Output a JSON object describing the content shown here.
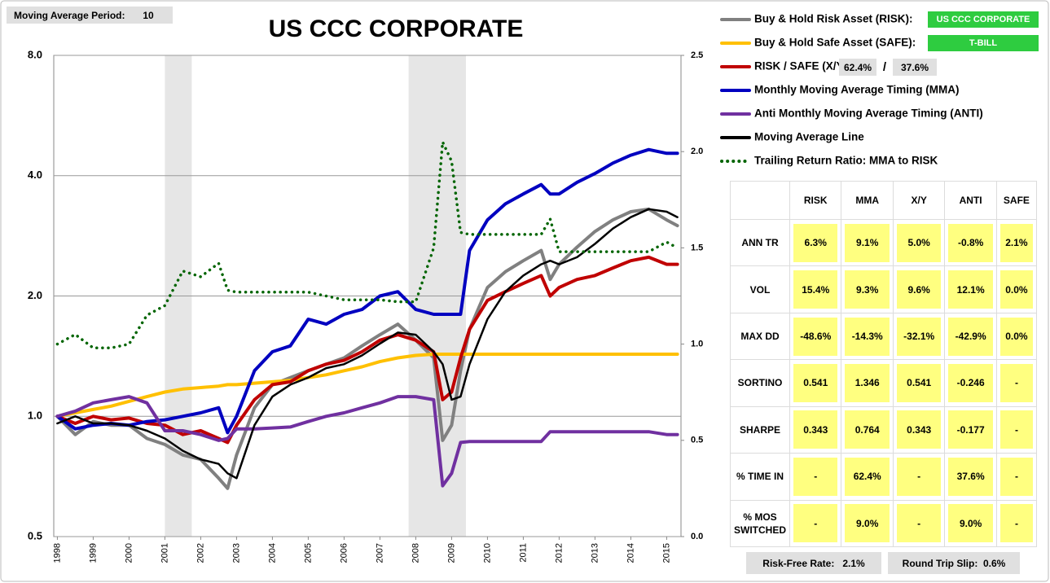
{
  "moving_average": {
    "label": "Moving Average Period:",
    "value": 10
  },
  "risk_asset": "US CCC CORPORATE",
  "safe_asset": "T-BILL",
  "allocation": {
    "risk": "62.4%",
    "separator": "/",
    "safe": "37.6%"
  },
  "chart_data": {
    "type": "line",
    "title": "US CCC CORPORATE",
    "x": [
      1998.0,
      1998.5,
      1999.0,
      1999.5,
      2000.0,
      2000.5,
      2001.0,
      2001.5,
      2002.0,
      2002.5,
      2002.75,
      2003.0,
      2003.5,
      2004.0,
      2004.5,
      2005.0,
      2005.5,
      2006.0,
      2006.5,
      2007.0,
      2007.5,
      2008.0,
      2008.5,
      2008.75,
      2009.0,
      2009.25,
      2009.5,
      2010.0,
      2010.5,
      2011.0,
      2011.5,
      2011.75,
      2012.0,
      2012.5,
      2013.0,
      2013.5,
      2014.0,
      2014.5,
      2015.0,
      2015.3
    ],
    "series": [
      {
        "name": "Buy & Hold Risk Asset (RISK):",
        "color": "#808080",
        "values": [
          1.0,
          0.9,
          0.97,
          0.95,
          0.95,
          0.88,
          0.85,
          0.8,
          0.78,
          0.7,
          0.66,
          0.8,
          1.05,
          1.2,
          1.25,
          1.3,
          1.35,
          1.4,
          1.5,
          1.6,
          1.7,
          1.55,
          1.4,
          0.87,
          0.95,
          1.3,
          1.65,
          2.1,
          2.3,
          2.45,
          2.6,
          2.2,
          2.4,
          2.65,
          2.9,
          3.1,
          3.25,
          3.3,
          3.1,
          3.0
        ]
      },
      {
        "name": "Buy & Hold Safe Asset (SAFE):",
        "color": "#ffc000",
        "values": [
          1.0,
          1.02,
          1.04,
          1.06,
          1.09,
          1.12,
          1.15,
          1.17,
          1.18,
          1.19,
          1.2,
          1.2,
          1.21,
          1.22,
          1.23,
          1.25,
          1.27,
          1.3,
          1.33,
          1.37,
          1.4,
          1.42,
          1.43,
          1.43,
          1.43,
          1.43,
          1.43,
          1.43,
          1.43,
          1.43,
          1.43,
          1.43,
          1.43,
          1.43,
          1.43,
          1.43,
          1.43,
          1.43,
          1.43,
          1.43
        ]
      },
      {
        "name": "RISK / SAFE (X/Y):",
        "color": "#c00000",
        "values": [
          1.0,
          0.96,
          1.0,
          0.98,
          0.99,
          0.96,
          0.95,
          0.9,
          0.92,
          0.88,
          0.86,
          0.95,
          1.1,
          1.2,
          1.22,
          1.3,
          1.35,
          1.38,
          1.45,
          1.55,
          1.6,
          1.55,
          1.45,
          1.1,
          1.15,
          1.4,
          1.65,
          1.95,
          2.05,
          2.15,
          2.25,
          2.0,
          2.1,
          2.2,
          2.25,
          2.35,
          2.45,
          2.5,
          2.4,
          2.4
        ]
      },
      {
        "name": "Monthly Moving Average Timing (MMA)",
        "color": "#0000c0",
        "values": [
          1.0,
          0.93,
          0.95,
          0.96,
          0.95,
          0.97,
          0.98,
          1.0,
          1.02,
          1.05,
          0.91,
          1.0,
          1.3,
          1.45,
          1.5,
          1.75,
          1.7,
          1.8,
          1.85,
          2.0,
          2.05,
          1.85,
          1.8,
          1.8,
          1.8,
          1.8,
          2.6,
          3.1,
          3.4,
          3.6,
          3.8,
          3.6,
          3.6,
          3.85,
          4.05,
          4.3,
          4.5,
          4.65,
          4.55,
          4.55
        ]
      },
      {
        "name": "Anti Monthly Moving Average Timing (ANTI)",
        "color": "#7030a0",
        "values": [
          1.0,
          1.03,
          1.08,
          1.1,
          1.12,
          1.08,
          0.92,
          0.92,
          0.9,
          0.87,
          0.88,
          0.93,
          0.93,
          0.935,
          0.94,
          0.97,
          1.0,
          1.02,
          1.05,
          1.08,
          1.12,
          1.12,
          1.1,
          0.67,
          0.72,
          0.86,
          0.865,
          0.865,
          0.865,
          0.865,
          0.865,
          0.915,
          0.915,
          0.915,
          0.915,
          0.915,
          0.915,
          0.915,
          0.9,
          0.9
        ]
      },
      {
        "name": "Moving Average Line",
        "color": "#000000",
        "values": [
          0.96,
          1.0,
          0.96,
          0.96,
          0.95,
          0.92,
          0.88,
          0.82,
          0.78,
          0.76,
          0.72,
          0.7,
          0.95,
          1.12,
          1.2,
          1.25,
          1.32,
          1.35,
          1.42,
          1.52,
          1.62,
          1.6,
          1.45,
          1.35,
          1.1,
          1.12,
          1.35,
          1.75,
          2.05,
          2.25,
          2.4,
          2.45,
          2.4,
          2.5,
          2.7,
          2.95,
          3.15,
          3.3,
          3.25,
          3.15
        ]
      },
      {
        "name": "Trailing Return Ratio: MMA to RISK",
        "color": "#006400",
        "style": "dotted",
        "axis": "y2",
        "values": [
          1.0,
          1.05,
          0.98,
          0.98,
          1.0,
          1.15,
          1.2,
          1.38,
          1.35,
          1.42,
          1.28,
          1.27,
          1.27,
          1.27,
          1.27,
          1.27,
          1.25,
          1.23,
          1.23,
          1.23,
          1.22,
          1.22,
          1.5,
          2.05,
          1.95,
          1.58,
          1.57,
          1.57,
          1.57,
          1.57,
          1.57,
          1.65,
          1.48,
          1.48,
          1.48,
          1.48,
          1.48,
          1.48,
          1.53,
          1.5
        ]
      }
    ],
    "shaded_periods": [
      [
        2001.0,
        2001.75
      ],
      [
        2007.8,
        2009.4
      ]
    ],
    "xlim": [
      1997.9,
      2015.4
    ],
    "xticks": [
      1998,
      1999,
      2000,
      2001,
      2002,
      2003,
      2004,
      2005,
      2006,
      2007,
      2008,
      2009,
      2010,
      2011,
      2012,
      2013,
      2014,
      2015
    ],
    "ylim": [
      0.5,
      8
    ],
    "ylog": true,
    "yticks": [
      0.5,
      {
        "value": 1,
        "label": "1.0"
      },
      {
        "value": 2,
        "label": "2.0"
      },
      {
        "value": 4,
        "label": "4.0"
      },
      {
        "value": 8,
        "label": "8.0"
      }
    ],
    "y2lim": [
      0,
      2.5
    ],
    "y2ticks": [
      {
        "value": 0,
        "label": "0.0"
      },
      0.5,
      {
        "value": 1,
        "label": "1.0"
      },
      1.5,
      {
        "value": 2,
        "label": "2.0"
      },
      2.5
    ],
    "grid": true
  },
  "stats_table": {
    "columns": [
      "RISK",
      "MMA",
      "X/Y",
      "ANTI",
      "SAFE"
    ],
    "rows": [
      {
        "label": "ANN TR",
        "cells": [
          "6.3%",
          "9.1%",
          "5.0%",
          "-0.8%",
          "2.1%"
        ]
      },
      {
        "label": "VOL",
        "cells": [
          "15.4%",
          "9.3%",
          "9.6%",
          "12.1%",
          "0.0%"
        ]
      },
      {
        "label": "MAX DD",
        "cells": [
          "-48.6%",
          "-14.3%",
          "-32.1%",
          "-42.9%",
          "0.0%"
        ]
      },
      {
        "label": "SORTINO",
        "cells": [
          "0.541",
          "1.346",
          "0.541",
          "-0.246",
          "-"
        ]
      },
      {
        "label": "SHARPE",
        "cells": [
          "0.343",
          "0.764",
          "0.343",
          "-0.177",
          "-"
        ]
      },
      {
        "label": "% TIME IN",
        "cells": [
          "-",
          "62.4%",
          "-",
          "37.6%",
          "-"
        ]
      },
      {
        "label": "% MOS SWITCHED",
        "cells": [
          "-",
          "9.0%",
          "-",
          "9.0%",
          "-"
        ]
      }
    ]
  },
  "footer": {
    "risk_free_label": "Risk-Free Rate:",
    "risk_free_value": "2.1%",
    "slip_label": "Round Trip Slip:",
    "slip_value": "0.6%"
  }
}
